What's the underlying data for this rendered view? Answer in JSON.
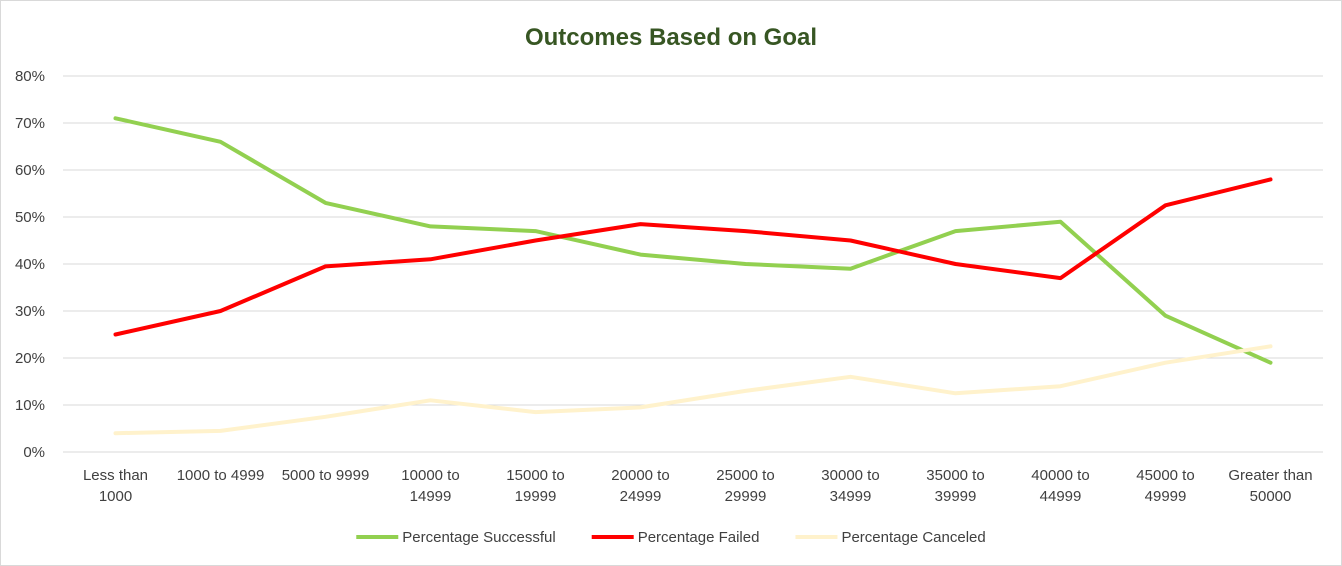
{
  "chart_data": {
    "type": "line",
    "title": "Outcomes Based on Goal",
    "xlabel": "",
    "ylabel": "",
    "ylim": [
      0,
      80
    ],
    "y_ticks": [
      "0%",
      "10%",
      "20%",
      "30%",
      "40%",
      "50%",
      "60%",
      "70%",
      "80%"
    ],
    "grid": true,
    "legend_position": "bottom",
    "categories": [
      [
        "Less than",
        "1000"
      ],
      [
        "1000 to 4999"
      ],
      [
        "5000 to 9999"
      ],
      [
        "10000 to",
        "14999"
      ],
      [
        "15000 to",
        "19999"
      ],
      [
        "20000 to",
        "24999"
      ],
      [
        "25000 to",
        "29999"
      ],
      [
        "30000 to",
        "34999"
      ],
      [
        "35000 to",
        "39999"
      ],
      [
        "40000 to",
        "44999"
      ],
      [
        "45000 to",
        "49999"
      ],
      [
        "Greater than",
        "50000"
      ]
    ],
    "series": [
      {
        "name": "Percentage Successful",
        "color": "#92d050",
        "values": [
          71,
          66,
          53,
          48,
          47,
          42,
          40,
          39,
          47,
          49,
          29,
          19
        ]
      },
      {
        "name": "Percentage Failed",
        "color": "#ff0000",
        "values": [
          25,
          30,
          39.5,
          41,
          45,
          48.5,
          47,
          45,
          40,
          37,
          52.5,
          58
        ]
      },
      {
        "name": "Percentage Canceled",
        "color": "#fff2cc",
        "values": [
          4,
          4.5,
          7.5,
          11,
          8.5,
          9.5,
          13,
          16,
          12.5,
          14,
          19,
          22.5
        ]
      }
    ]
  }
}
